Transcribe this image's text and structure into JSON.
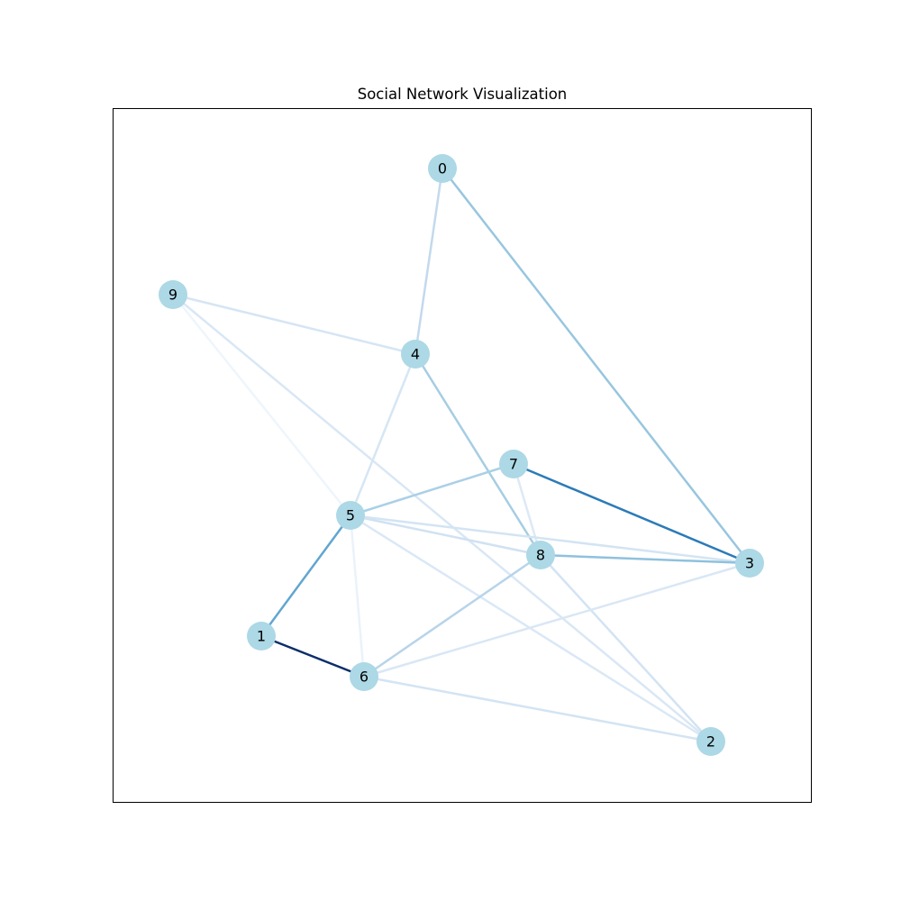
{
  "title": "Social Network Visualization",
  "colors": {
    "node_fill": "#add8e6",
    "edge_colormap": "Blues",
    "frame": "#000000",
    "background": "#ffffff"
  },
  "nodes": [
    {
      "id": "0"
    },
    {
      "id": "1"
    },
    {
      "id": "2"
    },
    {
      "id": "3"
    },
    {
      "id": "4"
    },
    {
      "id": "5"
    },
    {
      "id": "6"
    },
    {
      "id": "7"
    },
    {
      "id": "8"
    },
    {
      "id": "9"
    }
  ],
  "edges": [
    {
      "source": "0",
      "target": "4",
      "color": "#c3d9ed"
    },
    {
      "source": "0",
      "target": "3",
      "color": "#98c6df"
    },
    {
      "source": "9",
      "target": "4",
      "color": "#d5e5f4"
    },
    {
      "source": "9",
      "target": "2",
      "color": "#d9e7f5"
    },
    {
      "source": "9",
      "target": "5",
      "color": "#eef5fc"
    },
    {
      "source": "4",
      "target": "5",
      "color": "#d6e6f4"
    },
    {
      "source": "4",
      "target": "8",
      "color": "#a6cde3"
    },
    {
      "source": "7",
      "target": "5",
      "color": "#abd0e6"
    },
    {
      "source": "7",
      "target": "8",
      "color": "#dde9f6"
    },
    {
      "source": "7",
      "target": "3",
      "color": "#2c7bb8"
    },
    {
      "source": "5",
      "target": "8",
      "color": "#d0e2f2"
    },
    {
      "source": "5",
      "target": "3",
      "color": "#d3e4f3"
    },
    {
      "source": "5",
      "target": "2",
      "color": "#dae8f6"
    },
    {
      "source": "5",
      "target": "1",
      "color": "#62a6d0"
    },
    {
      "source": "5",
      "target": "6",
      "color": "#eaf2fb"
    },
    {
      "source": "8",
      "target": "3",
      "color": "#8fc1de"
    },
    {
      "source": "8",
      "target": "6",
      "color": "#b7d4ea"
    },
    {
      "source": "8",
      "target": "2",
      "color": "#d2e3f3"
    },
    {
      "source": "3",
      "target": "6",
      "color": "#d9e7f5"
    },
    {
      "source": "1",
      "target": "6",
      "color": "#0c2e69"
    },
    {
      "source": "6",
      "target": "2",
      "color": "#d3e4f3"
    }
  ]
}
